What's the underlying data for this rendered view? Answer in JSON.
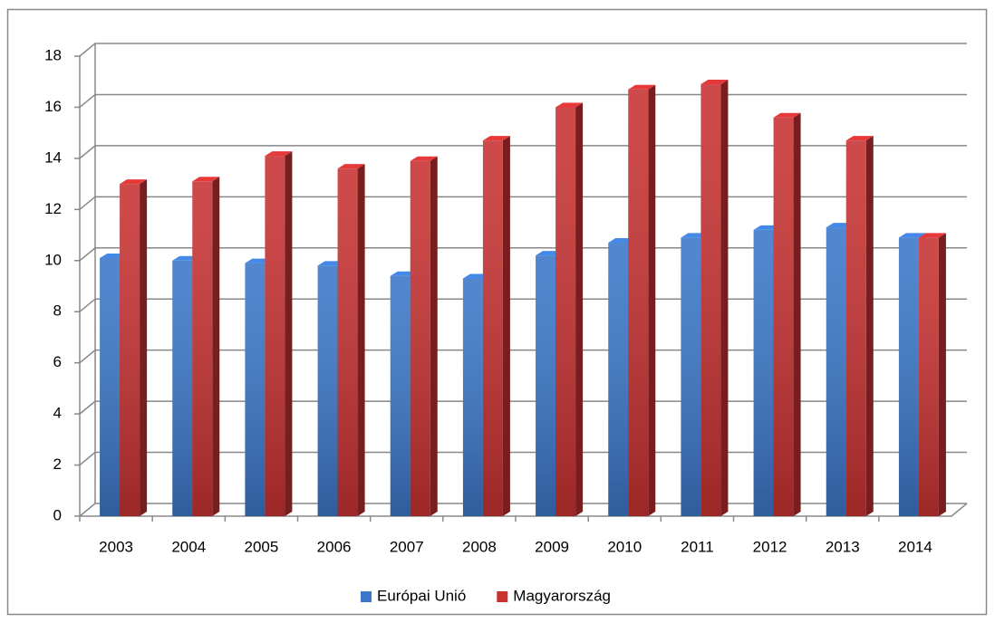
{
  "chart_data": {
    "type": "bar3d",
    "categories": [
      "2003",
      "2004",
      "2005",
      "2006",
      "2007",
      "2008",
      "2009",
      "2010",
      "2011",
      "2012",
      "2013",
      "2014"
    ],
    "series": [
      {
        "name": "Európai Unió",
        "color": "#3b77c9",
        "values": [
          10.1,
          10.0,
          9.9,
          9.8,
          9.4,
          9.3,
          10.2,
          10.7,
          10.9,
          11.2,
          11.3,
          10.9
        ]
      },
      {
        "name": "Magyarország",
        "color": "#c83232",
        "values": [
          13.0,
          13.1,
          14.1,
          13.6,
          13.9,
          14.7,
          16.0,
          16.7,
          16.9,
          15.6,
          14.7,
          10.9
        ]
      }
    ],
    "ylim": [
      0,
      18
    ],
    "yticks": [
      0,
      2,
      4,
      6,
      8,
      10,
      12,
      14,
      16,
      18
    ],
    "grid": true,
    "legend": "bottom"
  }
}
